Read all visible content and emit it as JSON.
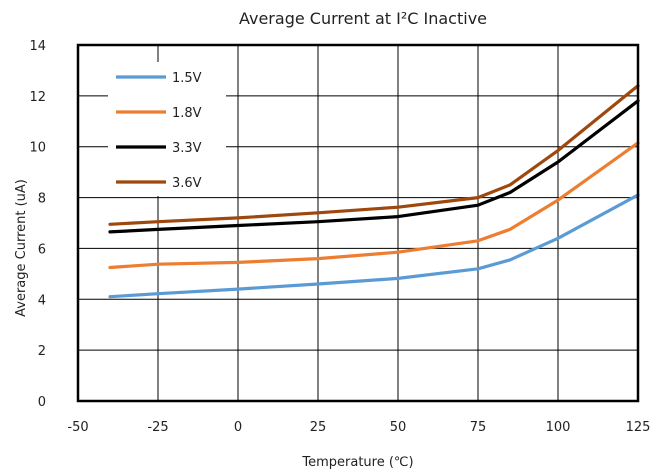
{
  "chart_data": {
    "type": "line",
    "title": "Average Current at I²C Inactive",
    "xlabel": "Temperature (℃)",
    "ylabel": "Average Current (uA)",
    "xlim": [
      -50,
      125
    ],
    "ylim": [
      0,
      14
    ],
    "xticks": [
      -50,
      -25,
      0,
      25,
      50,
      75,
      100,
      125
    ],
    "yticks": [
      0,
      2,
      4,
      6,
      8,
      10,
      12,
      14
    ],
    "grid": true,
    "legend_position": "top-left",
    "series": [
      {
        "name": "1.5V",
        "color": "#5b9bd5",
        "x": [
          -40,
          -25,
          0,
          25,
          50,
          75,
          85,
          100,
          125
        ],
        "y": [
          4.1,
          4.22,
          4.4,
          4.6,
          4.82,
          5.2,
          5.55,
          6.4,
          8.1
        ]
      },
      {
        "name": "1.8V",
        "color": "#ed7d31",
        "x": [
          -40,
          -25,
          0,
          25,
          50,
          75,
          85,
          100,
          125
        ],
        "y": [
          5.25,
          5.38,
          5.45,
          5.6,
          5.85,
          6.3,
          6.75,
          7.9,
          10.15
        ]
      },
      {
        "name": "3.3V",
        "color": "#000000",
        "x": [
          -40,
          -25,
          0,
          25,
          50,
          75,
          85,
          100,
          125
        ],
        "y": [
          6.65,
          6.75,
          6.9,
          7.05,
          7.25,
          7.7,
          8.2,
          9.4,
          11.8
        ]
      },
      {
        "name": "3.6V",
        "color": "#9e480e",
        "x": [
          -40,
          -25,
          0,
          25,
          50,
          75,
          85,
          100,
          125
        ],
        "y": [
          6.95,
          7.05,
          7.2,
          7.4,
          7.62,
          8.0,
          8.5,
          9.85,
          12.4
        ]
      }
    ]
  }
}
